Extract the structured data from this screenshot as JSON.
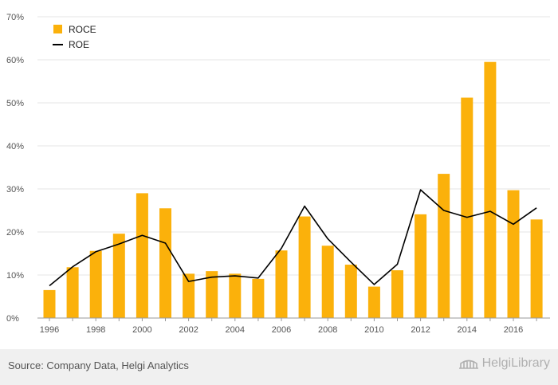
{
  "chart_data": {
    "type": "bar",
    "categories": [
      "1996",
      "1997",
      "1998",
      "1999",
      "2000",
      "2001",
      "2002",
      "2003",
      "2004",
      "2005",
      "2006",
      "2007",
      "2008",
      "2009",
      "2010",
      "2011",
      "2012",
      "2013",
      "2014",
      "2015",
      "2016",
      "2017"
    ],
    "x_tick_labels": [
      "1996",
      "1998",
      "2000",
      "2002",
      "2004",
      "2006",
      "2008",
      "2010",
      "2012",
      "2014",
      "2016"
    ],
    "series": [
      {
        "name": "ROCE",
        "type": "bar",
        "color": "#fbb10b",
        "values": [
          6.5,
          11.8,
          15.6,
          19.6,
          29.0,
          25.5,
          10.3,
          10.9,
          10.3,
          9.1,
          15.7,
          23.6,
          16.8,
          12.4,
          7.3,
          11.1,
          24.1,
          33.5,
          51.2,
          59.5,
          29.7,
          22.9
        ]
      },
      {
        "name": "ROE",
        "type": "line",
        "color": "#000000",
        "values": [
          7.5,
          11.9,
          15.4,
          17.2,
          19.2,
          17.4,
          8.5,
          9.5,
          9.8,
          9.3,
          16.2,
          26.0,
          18.4,
          13.0,
          7.8,
          12.5,
          29.8,
          25.0,
          23.4,
          24.8,
          21.8,
          25.6
        ]
      }
    ],
    "ylim": [
      0,
      70
    ],
    "y_ticks": [
      "0%",
      "10%",
      "20%",
      "30%",
      "40%",
      "50%",
      "60%",
      "70%"
    ],
    "y_tick_values": [
      0,
      10,
      20,
      30,
      40,
      50,
      60,
      70
    ],
    "grid": true,
    "legend_position": "top-left"
  },
  "footer": {
    "source": "Source: Company Data, Helgi Analytics",
    "logo_text": "HelgiLibrary",
    "logo_icon": "helgi-library-bridge-icon"
  }
}
